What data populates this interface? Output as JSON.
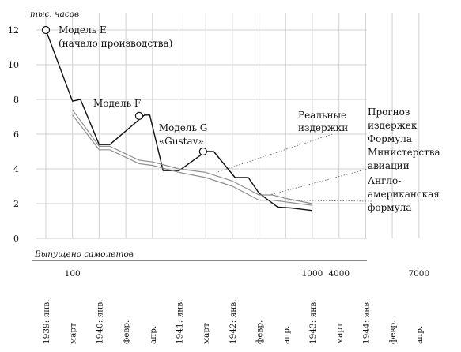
{
  "chart_data": {
    "type": "line",
    "y_unit_label": "тыс. часов",
    "ylim": [
      0,
      13
    ],
    "yticks": [
      0,
      2,
      4,
      6,
      8,
      10,
      12
    ],
    "x_row_label": "Выпущено самолетов",
    "production_ticks": [
      {
        "label": "100",
        "at_index": 1
      },
      {
        "label": "1000",
        "at_index": 10
      },
      {
        "label": "4000",
        "at_index": 11
      },
      {
        "label": "7000",
        "at_index": 14
      }
    ],
    "x_categories": [
      "1939: янв.",
      "март",
      "1940: янв.",
      "февр.",
      "апр.",
      "1941: янв.",
      "март",
      "1942: янв.",
      "февр.",
      "апр.",
      "1943: янв.",
      "март",
      "1944: янв.",
      "февр.",
      "апр."
    ],
    "series": [
      {
        "name": "Реальные издержки",
        "color": "#111111",
        "points": [
          [
            0,
            12
          ],
          [
            1,
            7.9
          ],
          [
            1.3,
            8.0
          ],
          [
            2,
            5.4
          ],
          [
            2.4,
            5.4
          ],
          [
            3.7,
            7.1
          ],
          [
            3.9,
            7.1
          ],
          [
            4.4,
            3.9
          ],
          [
            5,
            3.9
          ],
          [
            6,
            5.0
          ],
          [
            6.3,
            5.0
          ],
          [
            7.1,
            3.5
          ],
          [
            7.6,
            3.5
          ],
          [
            8,
            2.6
          ],
          [
            8.7,
            1.8
          ],
          [
            9.2,
            1.75
          ],
          [
            10,
            1.6
          ]
        ]
      },
      {
        "name": "Прогноз издержек Формула Министерства авиации",
        "color": "#8f8f8f",
        "points": [
          [
            1,
            7.4
          ],
          [
            2,
            5.3
          ],
          [
            2.4,
            5.3
          ],
          [
            3.5,
            4.5
          ],
          [
            4,
            4.4
          ],
          [
            5,
            4.0
          ],
          [
            6,
            3.8
          ],
          [
            7,
            3.3
          ],
          [
            8,
            2.5
          ],
          [
            8.5,
            2.5
          ],
          [
            9,
            2.3
          ],
          [
            10,
            2.0
          ]
        ]
      },
      {
        "name": "Англо-американская формула",
        "color": "#8f8f8f",
        "points": [
          [
            1,
            7.1
          ],
          [
            2,
            5.1
          ],
          [
            2.4,
            5.1
          ],
          [
            3.5,
            4.3
          ],
          [
            4,
            4.2
          ],
          [
            5,
            3.8
          ],
          [
            6,
            3.5
          ],
          [
            7,
            3.0
          ],
          [
            8,
            2.2
          ],
          [
            8.5,
            2.2
          ],
          [
            9,
            2.1
          ],
          [
            10,
            1.9
          ]
        ]
      }
    ],
    "markers": [
      {
        "x": 0,
        "y": 12,
        "label_lines": [
          "Модель E",
          "(начало производства)"
        ]
      },
      {
        "x": 3.5,
        "y": 7.05,
        "label_lines": [
          "Модель F"
        ]
      },
      {
        "x": 5.9,
        "y": 5.0,
        "label_lines": [
          "Модель G",
          "«Gustav»"
        ]
      }
    ],
    "annotations": [
      {
        "lines": [
          "Реальные",
          "издержки"
        ],
        "target_series": 0
      },
      {
        "lines": [
          "Прогноз",
          "издержек",
          "Формула",
          "Министерства",
          "авиации"
        ],
        "target_series": 1
      },
      {
        "lines": [
          "Англо-",
          "американская",
          "формула"
        ],
        "target_series": 2
      }
    ],
    "grid": true,
    "legend": "inline-right"
  }
}
